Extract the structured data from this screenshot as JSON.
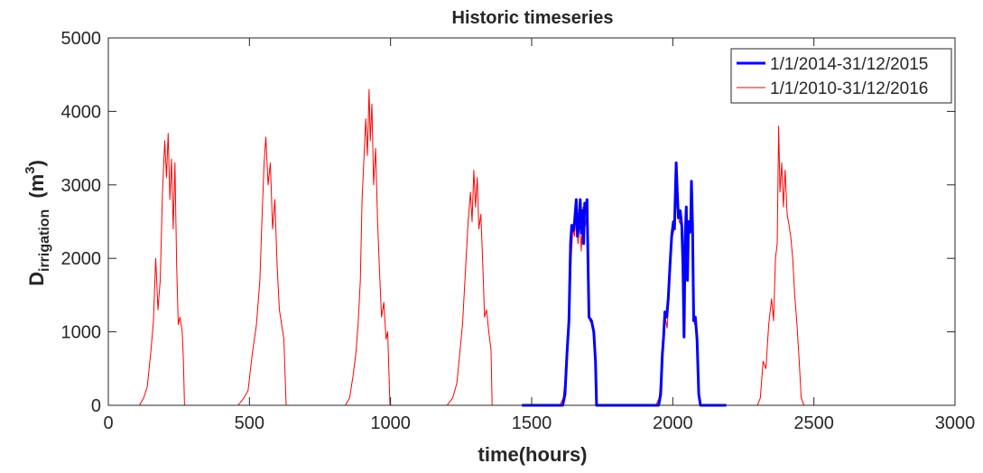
{
  "chart_data": {
    "type": "line",
    "title": "Historic timeseries",
    "xlabel": "time(hours)",
    "ylabel": {
      "base": "D",
      "subscript": "irrigation",
      "unit_prefix": "(m",
      "unit_superscript": "3",
      "unit_suffix": ")"
    },
    "xlim": [
      0,
      3000
    ],
    "ylim": [
      0,
      5000
    ],
    "xticks": [
      0,
      500,
      1000,
      1500,
      2000,
      2500,
      3000
    ],
    "yticks": [
      0,
      1000,
      2000,
      3000,
      4000,
      5000
    ],
    "xtick_labels": [
      "0",
      "500",
      "1000",
      "1500",
      "2000",
      "2500",
      "3000"
    ],
    "ytick_labels": [
      "0",
      "1000",
      "2000",
      "3000",
      "4000",
      "5000"
    ],
    "grid": false,
    "legend_position": "top-right",
    "series": [
      {
        "name": "1/1/2014-31/12/2015",
        "color": "#0000ff",
        "line_weight": "thick",
        "points": [
          [
            1465,
            0
          ],
          [
            1610,
            0
          ],
          [
            1618,
            150
          ],
          [
            1625,
            700
          ],
          [
            1632,
            1150
          ],
          [
            1638,
            2200
          ],
          [
            1642,
            2450
          ],
          [
            1648,
            2380
          ],
          [
            1652,
            2500
          ],
          [
            1658,
            2800
          ],
          [
            1662,
            2300
          ],
          [
            1668,
            2500
          ],
          [
            1672,
            2800
          ],
          [
            1676,
            2350
          ],
          [
            1680,
            2650
          ],
          [
            1684,
            2200
          ],
          [
            1688,
            2750
          ],
          [
            1692,
            2650
          ],
          [
            1696,
            2800
          ],
          [
            1700,
            1900
          ],
          [
            1703,
            1200
          ],
          [
            1712,
            1150
          ],
          [
            1720,
            1000
          ],
          [
            1726,
            600
          ],
          [
            1730,
            0
          ],
          [
            1950,
            0
          ],
          [
            1957,
            150
          ],
          [
            1963,
            700
          ],
          [
            1967,
            900
          ],
          [
            1972,
            1270
          ],
          [
            1978,
            1200
          ],
          [
            1984,
            1450
          ],
          [
            1990,
            1900
          ],
          [
            1996,
            2300
          ],
          [
            2002,
            2500
          ],
          [
            2006,
            2400
          ],
          [
            2008,
            2700
          ],
          [
            2012,
            3300
          ],
          [
            2016,
            2900
          ],
          [
            2020,
            2550
          ],
          [
            2026,
            2650
          ],
          [
            2032,
            2450
          ],
          [
            2036,
            1900
          ],
          [
            2040,
            930
          ],
          [
            2044,
            2300
          ],
          [
            2048,
            2700
          ],
          [
            2052,
            1700
          ],
          [
            2056,
            2500
          ],
          [
            2060,
            2350
          ],
          [
            2064,
            2550
          ],
          [
            2066,
            3050
          ],
          [
            2070,
            2450
          ],
          [
            2074,
            1150
          ],
          [
            2080,
            1200
          ],
          [
            2086,
            900
          ],
          [
            2092,
            150
          ],
          [
            2098,
            0
          ],
          [
            2190,
            0
          ]
        ]
      },
      {
        "name": "1/1/2010-31/12/2016",
        "color": "#ff0000",
        "line_weight": "thin",
        "points": [
          [
            0,
            0
          ],
          [
            110,
            0
          ],
          [
            125,
            100
          ],
          [
            138,
            250
          ],
          [
            150,
            700
          ],
          [
            160,
            1150
          ],
          [
            168,
            2000
          ],
          [
            176,
            1300
          ],
          [
            184,
            1700
          ],
          [
            192,
            2900
          ],
          [
            200,
            3600
          ],
          [
            206,
            3100
          ],
          [
            212,
            3700
          ],
          [
            218,
            2800
          ],
          [
            224,
            3350
          ],
          [
            230,
            2400
          ],
          [
            236,
            3300
          ],
          [
            242,
            1900
          ],
          [
            248,
            1100
          ],
          [
            254,
            1200
          ],
          [
            262,
            1000
          ],
          [
            266,
            600
          ],
          [
            270,
            0
          ],
          [
            460,
            0
          ],
          [
            480,
            100
          ],
          [
            495,
            200
          ],
          [
            510,
            700
          ],
          [
            525,
            1100
          ],
          [
            537,
            1700
          ],
          [
            545,
            2600
          ],
          [
            552,
            3300
          ],
          [
            558,
            3650
          ],
          [
            566,
            3000
          ],
          [
            574,
            3300
          ],
          [
            582,
            2400
          ],
          [
            590,
            2800
          ],
          [
            598,
            1900
          ],
          [
            606,
            1300
          ],
          [
            614,
            1100
          ],
          [
            622,
            900
          ],
          [
            630,
            0
          ],
          [
            840,
            0
          ],
          [
            855,
            100
          ],
          [
            867,
            400
          ],
          [
            877,
            700
          ],
          [
            885,
            1100
          ],
          [
            893,
            1700
          ],
          [
            899,
            2800
          ],
          [
            905,
            3300
          ],
          [
            912,
            3900
          ],
          [
            918,
            3400
          ],
          [
            924,
            4300
          ],
          [
            928,
            3600
          ],
          [
            934,
            4100
          ],
          [
            940,
            3000
          ],
          [
            947,
            3500
          ],
          [
            954,
            2500
          ],
          [
            960,
            1900
          ],
          [
            968,
            1200
          ],
          [
            976,
            1400
          ],
          [
            984,
            900
          ],
          [
            990,
            1000
          ],
          [
            998,
            0
          ],
          [
            1200,
            0
          ],
          [
            1220,
            100
          ],
          [
            1235,
            300
          ],
          [
            1245,
            700
          ],
          [
            1255,
            1100
          ],
          [
            1265,
            1800
          ],
          [
            1275,
            2500
          ],
          [
            1283,
            2900
          ],
          [
            1289,
            2500
          ],
          [
            1295,
            3200
          ],
          [
            1301,
            2700
          ],
          [
            1307,
            3100
          ],
          [
            1313,
            2400
          ],
          [
            1320,
            2600
          ],
          [
            1327,
            1900
          ],
          [
            1333,
            1200
          ],
          [
            1340,
            1300
          ],
          [
            1348,
            1000
          ],
          [
            1356,
            750
          ],
          [
            1360,
            0
          ],
          [
            1600,
            0
          ],
          [
            1612,
            100
          ],
          [
            1620,
            400
          ],
          [
            1628,
            900
          ],
          [
            1635,
            1300
          ],
          [
            1640,
            2000
          ],
          [
            1646,
            2400
          ],
          [
            1652,
            2300
          ],
          [
            1658,
            2650
          ],
          [
            1664,
            2200
          ],
          [
            1670,
            2500
          ],
          [
            1676,
            2100
          ],
          [
            1682,
            2700
          ],
          [
            1688,
            2400
          ],
          [
            1694,
            2550
          ],
          [
            1700,
            1800
          ],
          [
            1706,
            1150
          ],
          [
            1715,
            1100
          ],
          [
            1723,
            950
          ],
          [
            1730,
            0
          ],
          [
            1940,
            0
          ],
          [
            1952,
            100
          ],
          [
            1960,
            500
          ],
          [
            1966,
            850
          ],
          [
            1973,
            1200
          ],
          [
            1980,
            1050
          ],
          [
            1987,
            1500
          ],
          [
            1993,
            2100
          ],
          [
            1999,
            2300
          ],
          [
            2005,
            2400
          ],
          [
            2011,
            2900
          ],
          [
            2017,
            2700
          ],
          [
            2023,
            2500
          ],
          [
            2029,
            2450
          ],
          [
            2035,
            2250
          ],
          [
            2041,
            1500
          ],
          [
            2047,
            2500
          ],
          [
            2053,
            2100
          ],
          [
            2059,
            2450
          ],
          [
            2065,
            2500
          ],
          [
            2071,
            2200
          ],
          [
            2077,
            1100
          ],
          [
            2083,
            1100
          ],
          [
            2089,
            800
          ],
          [
            2095,
            0
          ],
          [
            2300,
            0
          ],
          [
            2310,
            100
          ],
          [
            2320,
            600
          ],
          [
            2330,
            500
          ],
          [
            2340,
            1100
          ],
          [
            2350,
            1450
          ],
          [
            2357,
            1150
          ],
          [
            2364,
            2000
          ],
          [
            2370,
            2200
          ],
          [
            2375,
            3800
          ],
          [
            2380,
            2900
          ],
          [
            2386,
            3300
          ],
          [
            2392,
            2700
          ],
          [
            2398,
            3200
          ],
          [
            2405,
            2600
          ],
          [
            2412,
            2450
          ],
          [
            2418,
            2300
          ],
          [
            2425,
            2000
          ],
          [
            2432,
            1500
          ],
          [
            2440,
            1100
          ],
          [
            2448,
            600
          ],
          [
            2455,
            100
          ],
          [
            2465,
            0
          ],
          [
            2570,
            0
          ]
        ]
      }
    ]
  }
}
